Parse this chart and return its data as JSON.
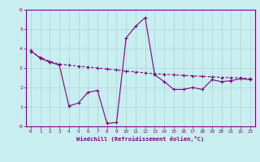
{
  "xlabel": "Windchill (Refroidissement éolien,°C)",
  "background_color": "#c8eef0",
  "line_color": "#800080",
  "grid_color": "#b0d8dc",
  "x_line1": [
    0,
    1,
    2,
    3,
    4,
    5,
    6,
    7,
    8,
    9,
    10,
    11,
    12,
    13,
    14,
    15,
    16,
    17,
    18,
    19,
    20,
    21,
    22,
    23
  ],
  "y_line1": [
    3.9,
    3.5,
    3.3,
    3.15,
    1.05,
    1.2,
    1.75,
    1.85,
    0.15,
    0.2,
    4.55,
    5.15,
    5.6,
    2.65,
    2.3,
    1.9,
    1.9,
    2.0,
    1.9,
    2.4,
    2.3,
    2.35,
    2.45,
    2.4
  ],
  "x_line2": [
    0,
    1,
    2,
    3,
    4,
    5,
    6,
    7,
    8,
    9,
    10,
    11,
    12,
    13,
    14,
    15,
    16,
    17,
    18,
    19,
    20,
    21,
    22,
    23
  ],
  "y_line2": [
    3.85,
    3.55,
    3.35,
    3.2,
    3.15,
    3.1,
    3.05,
    3.0,
    2.95,
    2.9,
    2.85,
    2.8,
    2.75,
    2.7,
    2.68,
    2.65,
    2.62,
    2.6,
    2.57,
    2.55,
    2.52,
    2.5,
    2.5,
    2.45
  ],
  "xlim": [
    -0.5,
    23.5
  ],
  "ylim": [
    0,
    6
  ],
  "yticks": [
    0,
    1,
    2,
    3,
    4,
    5,
    6
  ],
  "xticks": [
    0,
    1,
    2,
    3,
    4,
    5,
    6,
    7,
    8,
    9,
    10,
    11,
    12,
    13,
    14,
    15,
    16,
    17,
    18,
    19,
    20,
    21,
    22,
    23
  ]
}
